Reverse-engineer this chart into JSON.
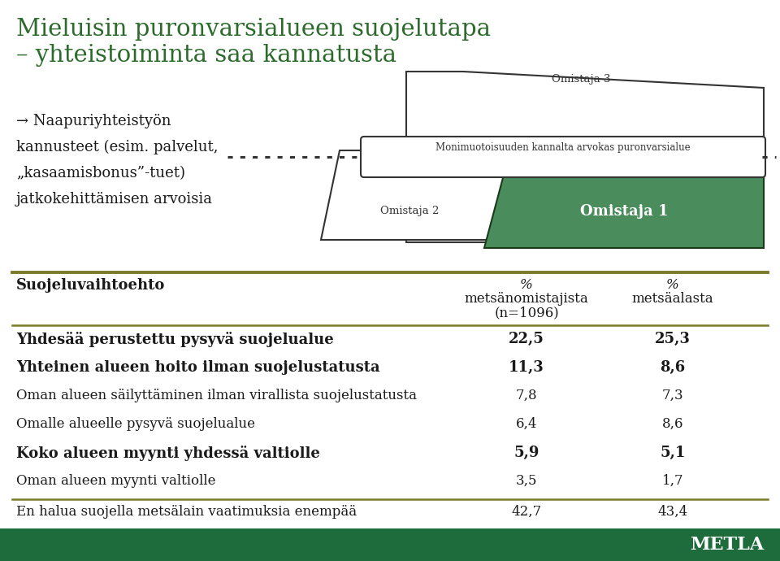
{
  "title_line1": "Mieluisin puronvarsialueen suojelutapa",
  "title_line2": "– yhteistoiminta saa kannatusta",
  "title_color": "#2d6b2d",
  "bullet_lines": [
    "→ Naapuriyhteistyön",
    "kannusteet (esim. palvelut,",
    "„kasaamisbonus”-tuet)",
    "jatkokehittämisen arvoisia"
  ],
  "diagram_label_omistaja3": "Omistaja 3",
  "diagram_label_omistaja2": "Omistaja 2",
  "diagram_label_omistaja1": "Omistaja 1",
  "diagram_label_monimuotoisuus": "Monimuotoisuuden kannalta arvokas puronvarsialue",
  "green_color": "#4a8c5c",
  "edge_color": "#333333",
  "table_header_col1": "Suojeluvaihtoehto",
  "table_header_col2_line1": "%",
  "table_header_col2_line2": "metsänomistajista",
  "table_header_col2_line3": "(n=1096)",
  "table_header_col3_line1": "%",
  "table_header_col3_line2": "metsäalasta",
  "table_rows": [
    {
      "text": "Yhdesää perustettu pysyvä suojelualue",
      "col2": "22,5",
      "col3": "25,3",
      "bold": true
    },
    {
      "text": "Yhteinen alueen hoito ilman suojelustatusta",
      "col2": "11,3",
      "col3": "8,6",
      "bold": true
    },
    {
      "text": "Oman alueen säilyttäminen ilman virallista suojelustatusta",
      "col2": "7,8",
      "col3": "7,3",
      "bold": false
    },
    {
      "text": "Omalle alueelle pysyvä suojelualue",
      "col2": "6,4",
      "col3": "8,6",
      "bold": false
    },
    {
      "text": "Koko alueen myynti yhdessä valtiolle",
      "col2": "5,9",
      "col3": "5,1",
      "bold": true
    },
    {
      "text": "Oman alueen myynti valtiolle",
      "col2": "3,5",
      "col3": "1,7",
      "bold": false
    },
    {
      "text": "En halua suojella metsälain vaatimuksia enempää",
      "col2": "42,7",
      "col3": "43,4",
      "bold": false,
      "last": true
    }
  ],
  "footer_color": "#1e6b3c",
  "footer_text": "METLA",
  "bg_color": "#ffffff",
  "line_color": "#7a7a2a",
  "text_color": "#1a1a1a"
}
